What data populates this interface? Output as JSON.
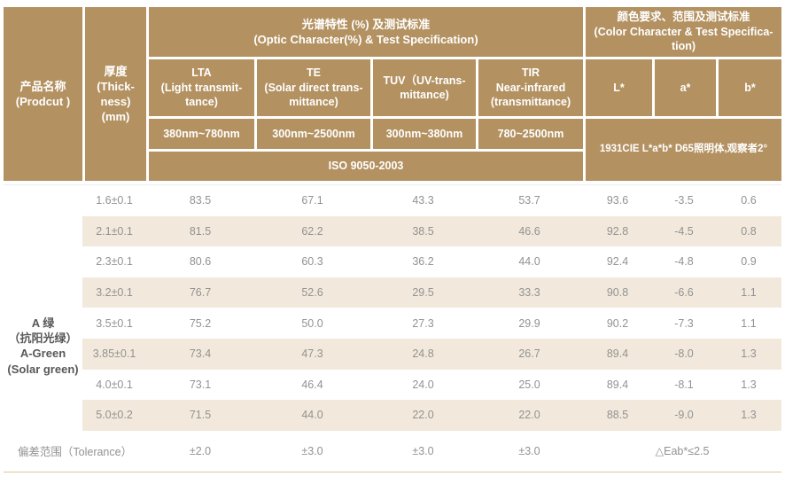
{
  "colors": {
    "header_bg": "#b39161",
    "row_alt_bg": "#f2e9dc",
    "bottom_line": "#d9c89b",
    "header_text": "#ffffff",
    "body_text": "#929292",
    "product_text": "#58585a"
  },
  "header": {
    "product": "产品名称\n(Prodcut )",
    "thickness": "厚度\n(Thick-\nness)\n(mm)",
    "optic_title": "光谱特性 (%) 及测试标准\n(Optic Character(%) & Test Specification)",
    "color_title": "颜色要求、范围及测试标准\n(Color Character & Test Specifica-\ntion)",
    "columns": {
      "lta": "LTA\n(Light transmit-\ntance)",
      "te": "TE\n(Solar direct trans-\nmittance)",
      "tuv": "TUV（UV-trans-\nmittance)",
      "tir": "TIR\nNear-infrared\n(transmittance)",
      "l_star": "L*",
      "a_star": "a*",
      "b_star": "b*"
    },
    "ranges": {
      "lta": "380nm~780nm",
      "te": "300nm~2500nm",
      "tuv": "300nm~380nm",
      "tir": "780~2500nm"
    },
    "iso": "ISO 9050-2003",
    "cie": "1931CIE L*a*b* D65照明体,观察者2°"
  },
  "body": {
    "product_name": "A 绿\n（抗阳光绿）\nA-Green\n(Solar green)",
    "column_keys": [
      "thickness",
      "lta",
      "te",
      "tuv",
      "tir",
      "l-star",
      "a-star",
      "b-star"
    ],
    "rows": [
      [
        "1.6±0.1",
        "83.5",
        "67.1",
        "43.3",
        "53.7",
        "93.6",
        "-3.5",
        "0.6"
      ],
      [
        "2.1±0.1",
        "81.5",
        "62.2",
        "38.5",
        "46.6",
        "92.8",
        "-4.5",
        "0.8"
      ],
      [
        "2.3±0.1",
        "80.6",
        "60.3",
        "36.2",
        "44.0",
        "92.4",
        "-4.8",
        "0.9"
      ],
      [
        "3.2±0.1",
        "76.7",
        "52.6",
        "29.5",
        "33.3",
        "90.8",
        "-6.6",
        "1.1"
      ],
      [
        "3.5±0.1",
        "75.2",
        "50.0",
        "27.3",
        "29.9",
        "90.2",
        "-7.3",
        "1.1"
      ],
      [
        "3.85±0.1",
        "73.4",
        "47.3",
        "24.8",
        "26.7",
        "89.4",
        "-8.0",
        "1.3"
      ],
      [
        "4.0±0.1",
        "73.1",
        "46.4",
        "24.0",
        "25.0",
        "89.4",
        "-8.1",
        "1.3"
      ],
      [
        "5.0±0.2",
        "71.5",
        "44.0",
        "22.0",
        "22.0",
        "88.5",
        "-9.0",
        "1.3"
      ]
    ],
    "tolerance": {
      "label": "偏差范围（Tolerance）",
      "lta": "±2.0",
      "te": "±3.0",
      "tuv": "±3.0",
      "tir": "±3.0",
      "color": "△Eab*≤2.5"
    }
  }
}
